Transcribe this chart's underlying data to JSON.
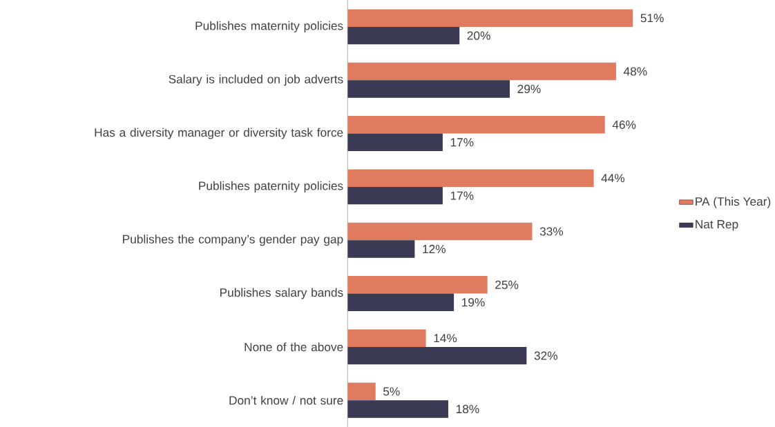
{
  "chart_data": {
    "type": "bar",
    "orientation": "horizontal",
    "categories": [
      "Publishes maternity policies",
      "Salary is included on job adverts",
      "Has a diversity manager or diversity task force",
      "Publishes paternity policies",
      "Publishes the company’s gender pay gap",
      "Publishes salary bands",
      "None of the above",
      "Don’t know / not sure"
    ],
    "series": [
      {
        "name": "PA (This Year)",
        "color": "#e07b5f",
        "values": [
          51,
          48,
          46,
          44,
          33,
          25,
          14,
          5
        ],
        "value_labels": [
          "51%",
          "48%",
          "46%",
          "44%",
          "33%",
          "25%",
          "14%",
          "5%"
        ]
      },
      {
        "name": "Nat Rep",
        "color": "#3b3a54",
        "values": [
          20,
          29,
          17,
          17,
          12,
          19,
          32,
          18
        ],
        "value_labels": [
          "20%",
          "29%",
          "17%",
          "17%",
          "12%",
          "19%",
          "32%",
          "18%"
        ]
      }
    ],
    "legend": "right"
  }
}
